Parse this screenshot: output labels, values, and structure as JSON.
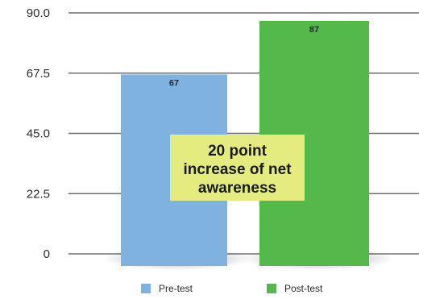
{
  "chart_data": {
    "type": "bar",
    "categories": [
      "Pre-test",
      "Post-test"
    ],
    "values": [
      67,
      87
    ],
    "data_labels": [
      "67",
      "87"
    ],
    "colors": [
      "#7fb2df",
      "#55b84a"
    ],
    "ylim": [
      0,
      90
    ],
    "yticks": [
      "0",
      "22.5",
      "45.0",
      "67.5",
      "90.0"
    ],
    "ytick_values": [
      0,
      22.5,
      45,
      67.5,
      90
    ],
    "grid": true,
    "legend": {
      "placement": "bottom",
      "entries": [
        {
          "name": "Pre-test",
          "color": "#7fb2df"
        },
        {
          "name": "Post-test",
          "color": "#55b84a"
        }
      ]
    },
    "annotation": {
      "lines": [
        "20 point",
        "increase of net",
        "awareness"
      ],
      "background": "#e5ec7f"
    }
  }
}
